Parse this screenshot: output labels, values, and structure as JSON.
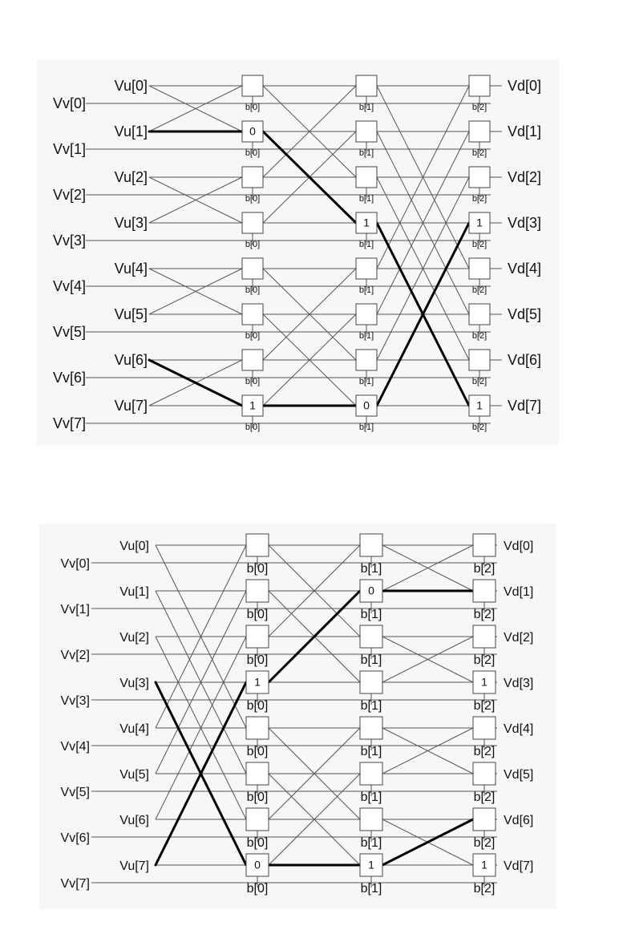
{
  "diagrams": [
    {
      "id": "top",
      "vu_labels": [
        "Vu[0]",
        "Vu[1]",
        "Vu[2]",
        "Vu[3]",
        "Vu[4]",
        "Vu[5]",
        "Vu[6]",
        "Vu[7]"
      ],
      "vv_labels": [
        "Vv[0]",
        "Vv[1]",
        "Vv[2]",
        "Vv[3]",
        "Vv[4]",
        "Vv[5]",
        "Vv[6]",
        "Vv[7]"
      ],
      "vd_labels": [
        "Vd[0]",
        "Vd[1]",
        "Vd[2]",
        "Vd[3]",
        "Vd[4]",
        "Vd[5]",
        "Vd[6]",
        "Vd[7]"
      ],
      "stage_labels": [
        "b[0]",
        "b[1]",
        "b[2]"
      ],
      "stage_partner_xor": [
        1,
        2,
        4
      ],
      "switch_values": [
        [
          "",
          "0",
          "",
          "",
          "",
          "",
          "",
          "1"
        ],
        [
          "",
          "",
          "",
          "1",
          "",
          "",
          "",
          "0"
        ],
        [
          "",
          "",
          "",
          "1",
          "",
          "",
          "",
          "1"
        ]
      ],
      "highlight_paths": [
        [
          [
            0,
            1
          ],
          [
            1,
            1
          ],
          [
            2,
            3
          ],
          [
            3,
            7
          ]
        ],
        [
          [
            0,
            6
          ],
          [
            1,
            7
          ],
          [
            2,
            7
          ],
          [
            3,
            3
          ]
        ]
      ]
    },
    {
      "id": "bottom",
      "vu_labels": [
        "Vu[0]",
        "Vu[1]",
        "Vu[2]",
        "Vu[3]",
        "Vu[4]",
        "Vu[5]",
        "Vu[6]",
        "Vu[7]"
      ],
      "vv_labels": [
        "Vv[0]",
        "Vv[1]",
        "Vv[2]",
        "Vv[3]",
        "Vv[4]",
        "Vv[5]",
        "Vv[6]",
        "Vv[7]"
      ],
      "vd_labels": [
        "Vd[0]",
        "Vd[1]",
        "Vd[2]",
        "Vd[3]",
        "Vd[4]",
        "Vd[5]",
        "Vd[6]",
        "Vd[7]"
      ],
      "stage_labels": [
        "b[0]",
        "b[1]",
        "b[2]"
      ],
      "stage_partner_xor": [
        4,
        2,
        1
      ],
      "switch_values": [
        [
          "",
          "",
          "",
          "1",
          "",
          "",
          "",
          "0"
        ],
        [
          "",
          "0",
          "",
          "",
          "",
          "",
          "",
          "1"
        ],
        [
          "",
          "",
          "",
          "1",
          "",
          "",
          "",
          "1"
        ]
      ],
      "highlight_paths": [
        [
          [
            0,
            3
          ],
          [
            1,
            7
          ],
          [
            2,
            7
          ],
          [
            3,
            6
          ]
        ],
        [
          [
            0,
            7
          ],
          [
            1,
            3
          ],
          [
            2,
            1
          ],
          [
            3,
            1
          ]
        ]
      ]
    }
  ]
}
